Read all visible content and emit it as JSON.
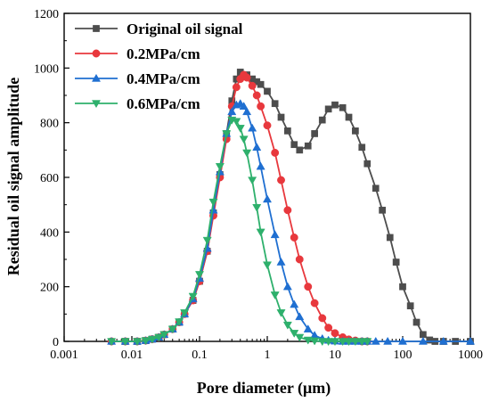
{
  "chart_data": {
    "type": "line",
    "title": "",
    "xlabel": "Pore diameter (μm)",
    "ylabel": "Residual oil signal amplitude",
    "x_scale": "log",
    "xlim": [
      0.001,
      1000
    ],
    "ylim": [
      0,
      1200
    ],
    "x_ticks": [
      0.001,
      0.01,
      0.1,
      1,
      10,
      100,
      1000
    ],
    "x_tick_labels": [
      "0.001",
      "0.01",
      "0.1",
      "1",
      "10",
      "100",
      "1000"
    ],
    "y_ticks": [
      0,
      200,
      400,
      600,
      800,
      1000,
      1200
    ],
    "y_tick_labels": [
      "0",
      "200",
      "400",
      "600",
      "800",
      "1000",
      "1200"
    ],
    "grid": false,
    "legend_position": "top-left",
    "series": [
      {
        "name": "Original oil signal",
        "color": "#4d4d4d",
        "marker": "square",
        "points": [
          [
            0.008,
            0
          ],
          [
            0.012,
            0
          ],
          [
            0.016,
            3
          ],
          [
            0.02,
            8
          ],
          [
            0.025,
            15
          ],
          [
            0.03,
            25
          ],
          [
            0.04,
            45
          ],
          [
            0.05,
            70
          ],
          [
            0.06,
            100
          ],
          [
            0.08,
            150
          ],
          [
            0.1,
            220
          ],
          [
            0.13,
            330
          ],
          [
            0.16,
            470
          ],
          [
            0.2,
            610
          ],
          [
            0.25,
            760
          ],
          [
            0.3,
            880
          ],
          [
            0.35,
            960
          ],
          [
            0.4,
            985
          ],
          [
            0.5,
            975
          ],
          [
            0.6,
            960
          ],
          [
            0.7,
            950
          ],
          [
            0.8,
            940
          ],
          [
            1.0,
            915
          ],
          [
            1.3,
            870
          ],
          [
            1.6,
            820
          ],
          [
            2.0,
            770
          ],
          [
            2.5,
            720
          ],
          [
            3.0,
            700
          ],
          [
            4.0,
            715
          ],
          [
            5.0,
            760
          ],
          [
            6.5,
            810
          ],
          [
            8.0,
            850
          ],
          [
            10,
            865
          ],
          [
            13,
            855
          ],
          [
            16,
            820
          ],
          [
            20,
            770
          ],
          [
            25,
            710
          ],
          [
            30,
            650
          ],
          [
            40,
            560
          ],
          [
            50,
            480
          ],
          [
            65,
            380
          ],
          [
            80,
            290
          ],
          [
            100,
            200
          ],
          [
            130,
            130
          ],
          [
            160,
            70
          ],
          [
            200,
            25
          ],
          [
            250,
            5
          ],
          [
            300,
            0
          ],
          [
            400,
            0
          ],
          [
            600,
            0
          ],
          [
            1000,
            0
          ]
        ]
      },
      {
        "name": "0.2MPa/cm",
        "color": "#e8383d",
        "marker": "circle",
        "points": [
          [
            0.005,
            0
          ],
          [
            0.008,
            0
          ],
          [
            0.012,
            0
          ],
          [
            0.016,
            3
          ],
          [
            0.02,
            8
          ],
          [
            0.025,
            15
          ],
          [
            0.03,
            25
          ],
          [
            0.04,
            45
          ],
          [
            0.05,
            70
          ],
          [
            0.06,
            100
          ],
          [
            0.08,
            150
          ],
          [
            0.1,
            220
          ],
          [
            0.13,
            330
          ],
          [
            0.16,
            460
          ],
          [
            0.2,
            600
          ],
          [
            0.25,
            740
          ],
          [
            0.3,
            860
          ],
          [
            0.35,
            930
          ],
          [
            0.4,
            960
          ],
          [
            0.45,
            975
          ],
          [
            0.5,
            965
          ],
          [
            0.6,
            935
          ],
          [
            0.7,
            900
          ],
          [
            0.8,
            860
          ],
          [
            1.0,
            790
          ],
          [
            1.3,
            690
          ],
          [
            1.6,
            590
          ],
          [
            2.0,
            480
          ],
          [
            2.5,
            380
          ],
          [
            3.0,
            300
          ],
          [
            4.0,
            200
          ],
          [
            5.0,
            140
          ],
          [
            6.5,
            85
          ],
          [
            8.0,
            50
          ],
          [
            10,
            30
          ],
          [
            13,
            15
          ],
          [
            16,
            7
          ],
          [
            20,
            3
          ],
          [
            25,
            0
          ],
          [
            30,
            0
          ]
        ]
      },
      {
        "name": "0.4MPa/cm",
        "color": "#1f6fd1",
        "marker": "triangle-up",
        "points": [
          [
            0.005,
            0
          ],
          [
            0.008,
            0
          ],
          [
            0.012,
            0
          ],
          [
            0.016,
            3
          ],
          [
            0.02,
            8
          ],
          [
            0.025,
            15
          ],
          [
            0.03,
            25
          ],
          [
            0.04,
            45
          ],
          [
            0.05,
            70
          ],
          [
            0.06,
            100
          ],
          [
            0.08,
            155
          ],
          [
            0.1,
            230
          ],
          [
            0.13,
            340
          ],
          [
            0.16,
            480
          ],
          [
            0.2,
            620
          ],
          [
            0.25,
            760
          ],
          [
            0.3,
            840
          ],
          [
            0.35,
            865
          ],
          [
            0.4,
            870
          ],
          [
            0.45,
            860
          ],
          [
            0.5,
            840
          ],
          [
            0.6,
            780
          ],
          [
            0.7,
            710
          ],
          [
            0.8,
            640
          ],
          [
            1.0,
            520
          ],
          [
            1.3,
            390
          ],
          [
            1.6,
            290
          ],
          [
            2.0,
            200
          ],
          [
            2.5,
            135
          ],
          [
            3.0,
            90
          ],
          [
            4.0,
            45
          ],
          [
            5.0,
            22
          ],
          [
            6.5,
            10
          ],
          [
            8.0,
            4
          ],
          [
            10,
            1
          ],
          [
            13,
            0
          ],
          [
            16,
            0
          ],
          [
            20,
            0
          ],
          [
            25,
            0
          ],
          [
            30,
            0
          ],
          [
            40,
            0
          ],
          [
            60,
            0
          ],
          [
            100,
            0
          ],
          [
            200,
            0
          ],
          [
            400,
            0
          ],
          [
            1000,
            0
          ]
        ]
      },
      {
        "name": "0.6MPa/cm",
        "color": "#2eb06c",
        "marker": "triangle-down",
        "points": [
          [
            0.005,
            0
          ],
          [
            0.008,
            0
          ],
          [
            0.012,
            0
          ],
          [
            0.016,
            3
          ],
          [
            0.02,
            8
          ],
          [
            0.025,
            15
          ],
          [
            0.03,
            25
          ],
          [
            0.04,
            45
          ],
          [
            0.05,
            72
          ],
          [
            0.06,
            105
          ],
          [
            0.08,
            165
          ],
          [
            0.1,
            245
          ],
          [
            0.13,
            370
          ],
          [
            0.16,
            510
          ],
          [
            0.2,
            640
          ],
          [
            0.25,
            760
          ],
          [
            0.3,
            810
          ],
          [
            0.35,
            805
          ],
          [
            0.4,
            780
          ],
          [
            0.45,
            740
          ],
          [
            0.5,
            690
          ],
          [
            0.6,
            590
          ],
          [
            0.7,
            490
          ],
          [
            0.8,
            400
          ],
          [
            1.0,
            280
          ],
          [
            1.3,
            170
          ],
          [
            1.6,
            105
          ],
          [
            2.0,
            60
          ],
          [
            2.5,
            30
          ],
          [
            3.0,
            15
          ],
          [
            4.0,
            5
          ],
          [
            5.0,
            2
          ],
          [
            6.5,
            0
          ],
          [
            8.0,
            0
          ],
          [
            10,
            0
          ],
          [
            13,
            0
          ],
          [
            16,
            0
          ],
          [
            20,
            0
          ],
          [
            25,
            0
          ],
          [
            30,
            0
          ]
        ]
      }
    ]
  }
}
